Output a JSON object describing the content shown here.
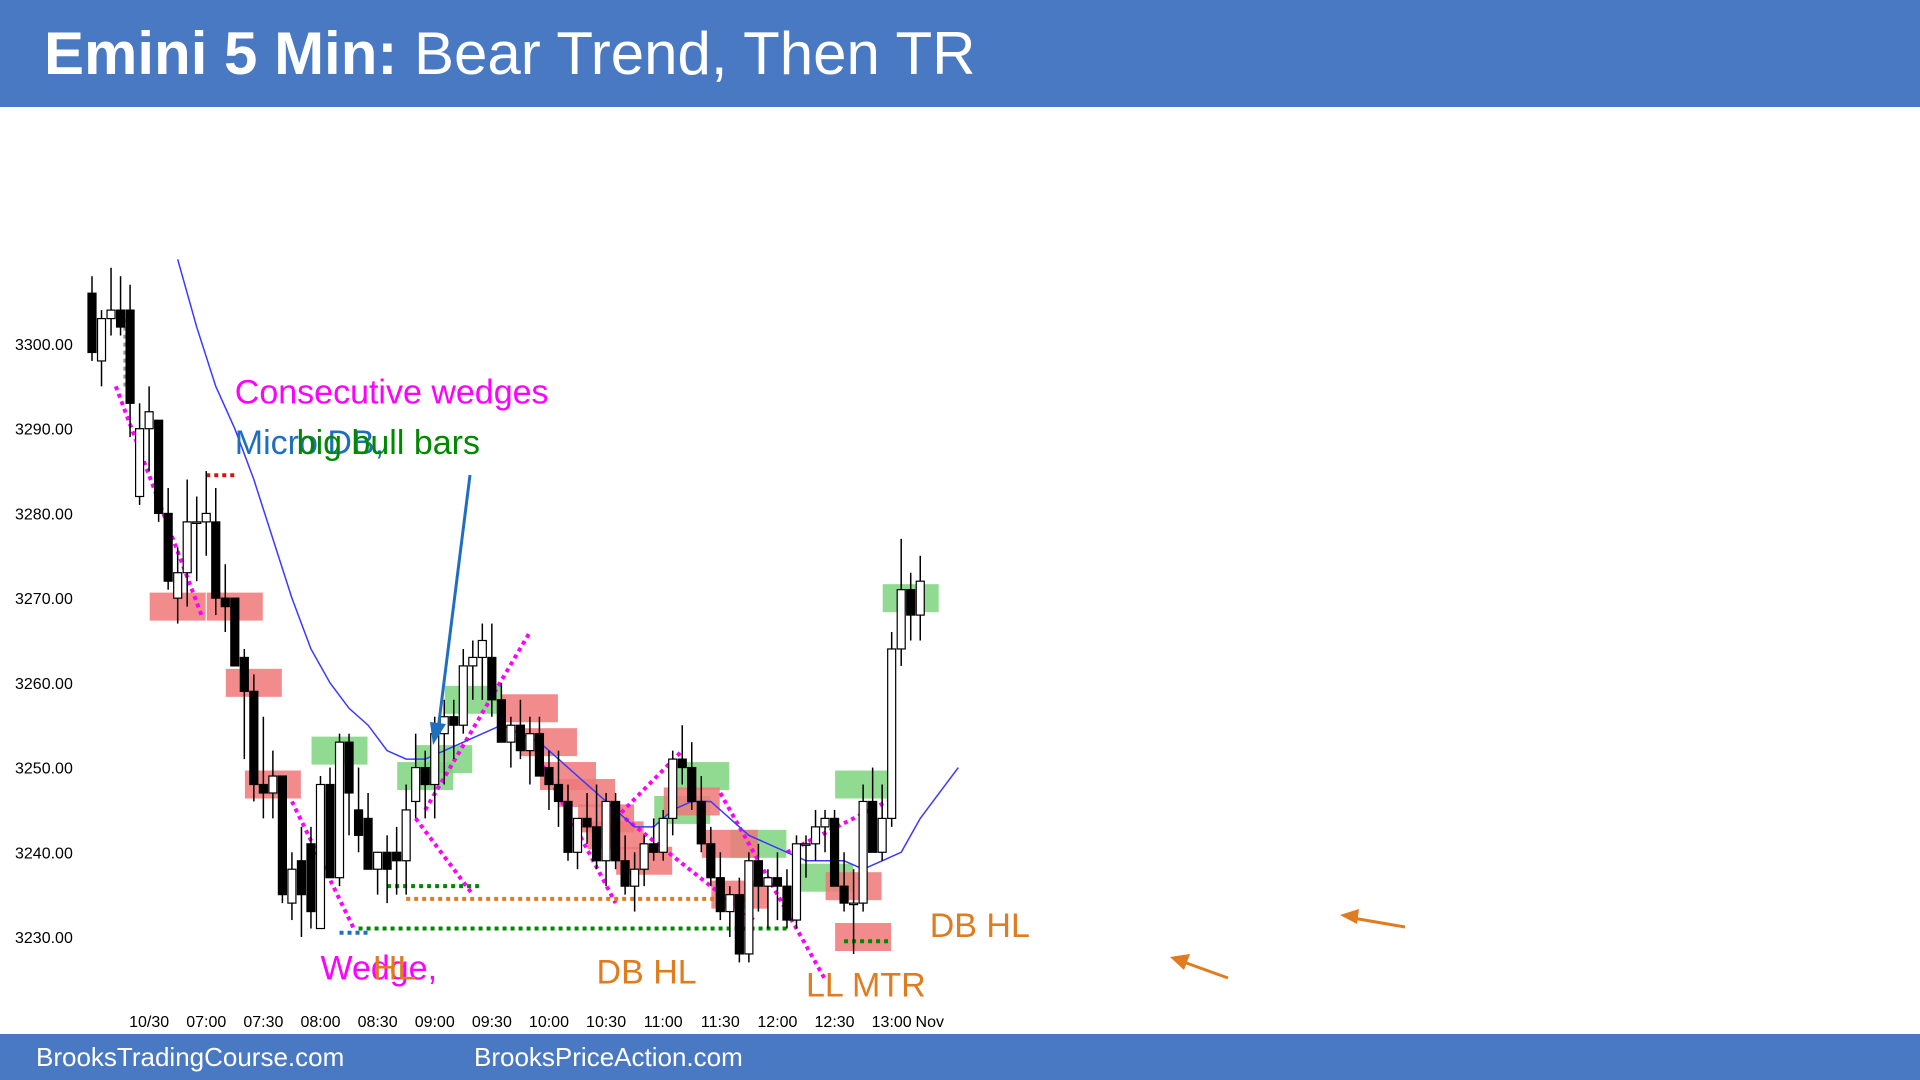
{
  "title": {
    "bold": "Emini 5 Min:",
    "rest": " Bear Trend, Then TR"
  },
  "footer": {
    "left": "BrooksTradingCourse.com",
    "right": "BrooksPriceAction.com"
  },
  "colors": {
    "header": "#4a79c3",
    "bull_zone": "#7ed37e",
    "bear_zone": "#f07878",
    "magenta": "#ff00ff",
    "orange": "#e07b1f",
    "blue": "#1f6fbf",
    "green": "#008800",
    "ema": "#3a3aff"
  },
  "chart_data": {
    "type": "candlestick",
    "title": "Emini 5 Min: Bear Trend, Then TR",
    "ylim": [
      3224,
      3307
    ],
    "y_ticks": [
      "3230.00",
      "3240.00",
      "3250.00",
      "3260.00",
      "3270.00",
      "3280.00",
      "3290.00",
      "3300.00"
    ],
    "x_ticks": [
      {
        "label": "10/30",
        "bar": 6
      },
      {
        "label": "07:00",
        "bar": 12
      },
      {
        "label": "07:30",
        "bar": 18
      },
      {
        "label": "08:00",
        "bar": 24
      },
      {
        "label": "08:30",
        "bar": 30
      },
      {
        "label": "09:00",
        "bar": 36
      },
      {
        "label": "09:30",
        "bar": 42
      },
      {
        "label": "10:00",
        "bar": 48
      },
      {
        "label": "10:30",
        "bar": 54
      },
      {
        "label": "11:00",
        "bar": 60
      },
      {
        "label": "11:30",
        "bar": 66
      },
      {
        "label": "12:00",
        "bar": 72
      },
      {
        "label": "12:30",
        "bar": 78
      },
      {
        "label": "13:00",
        "bar": 84
      },
      {
        "label": "Nov",
        "bar": 88
      }
    ],
    "bars": [
      [
        3306,
        3308,
        3298,
        3299
      ],
      [
        3298,
        3304,
        3295,
        3303
      ],
      [
        3303,
        3309,
        3301,
        3304
      ],
      [
        3304,
        3308,
        3301,
        3302
      ],
      [
        3304,
        3307,
        3289,
        3293
      ],
      [
        3282,
        3293,
        3281,
        3290
      ],
      [
        3290,
        3295,
        3285,
        3292
      ],
      [
        3291,
        3291,
        3279,
        3280
      ],
      [
        3280,
        3283,
        3271,
        3272
      ],
      [
        3270,
        3276,
        3267,
        3273
      ],
      [
        3273,
        3284,
        3269,
        3279
      ],
      [
        3279,
        3282,
        3272,
        3279
      ],
      [
        3279,
        3285,
        3275,
        3280
      ],
      [
        3279,
        3283,
        3268,
        3270
      ],
      [
        3270,
        3274,
        3266,
        3269
      ],
      [
        3270,
        3270,
        3262,
        3262
      ],
      [
        3263,
        3264,
        3251,
        3259
      ],
      [
        3259,
        3261,
        3246,
        3248
      ],
      [
        3248,
        3256,
        3244,
        3247
      ],
      [
        3247,
        3252,
        3244,
        3249
      ],
      [
        3249,
        3249,
        3234,
        3235
      ],
      [
        3234,
        3240,
        3232,
        3238
      ],
      [
        3239,
        3243,
        3230,
        3235
      ],
      [
        3241,
        3243,
        3231,
        3233
      ],
      [
        3231,
        3249,
        3231,
        3248
      ],
      [
        3248,
        3250,
        3237,
        3237
      ],
      [
        3237,
        3254,
        3236,
        3253
      ],
      [
        3253,
        3254,
        3242,
        3247
      ],
      [
        3245,
        3250,
        3240,
        3242
      ],
      [
        3244,
        3247,
        3238,
        3238
      ],
      [
        3238,
        3240,
        3235,
        3240
      ],
      [
        3240,
        3242,
        3234,
        3238
      ],
      [
        3240,
        3243,
        3235,
        3239
      ],
      [
        3239,
        3248,
        3235,
        3245
      ],
      [
        3246,
        3254,
        3244,
        3250
      ],
      [
        3250,
        3252,
        3244,
        3248
      ],
      [
        3248,
        3256,
        3244,
        3254
      ],
      [
        3254,
        3258,
        3248,
        3256
      ],
      [
        3256,
        3258,
        3251,
        3255
      ],
      [
        3255,
        3264,
        3254,
        3262
      ],
      [
        3262,
        3265,
        3258,
        3263
      ],
      [
        3263,
        3267,
        3258,
        3265
      ],
      [
        3263,
        3267,
        3256,
        3258
      ],
      [
        3258,
        3260,
        3253,
        3253
      ],
      [
        3253,
        3256,
        3250,
        3255
      ],
      [
        3255,
        3258,
        3251,
        3252
      ],
      [
        3252,
        3256,
        3248,
        3254
      ],
      [
        3254,
        3256,
        3249,
        3249
      ],
      [
        3250,
        3252,
        3245,
        3248
      ],
      [
        3248,
        3252,
        3243,
        3246
      ],
      [
        3246,
        3248,
        3239,
        3240
      ],
      [
        3240,
        3244,
        3238,
        3244
      ],
      [
        3244,
        3247,
        3241,
        3243
      ],
      [
        3243,
        3248,
        3238,
        3239
      ],
      [
        3239,
        3247,
        3236,
        3246
      ],
      [
        3246,
        3247,
        3238,
        3239
      ],
      [
        3239,
        3242,
        3235,
        3236
      ],
      [
        3236,
        3240,
        3233,
        3238
      ],
      [
        3238,
        3242,
        3236,
        3241
      ],
      [
        3241,
        3244,
        3239,
        3240
      ],
      [
        3240,
        3245,
        3239,
        3244
      ],
      [
        3244,
        3252,
        3242,
        3251
      ],
      [
        3251,
        3255,
        3248,
        3250
      ],
      [
        3250,
        3253,
        3245,
        3246
      ],
      [
        3246,
        3249,
        3240,
        3241
      ],
      [
        3241,
        3243,
        3236,
        3237
      ],
      [
        3237,
        3240,
        3232,
        3233
      ],
      [
        3233,
        3236,
        3230,
        3235
      ],
      [
        3235,
        3237,
        3227,
        3228
      ],
      [
        3228,
        3240,
        3227,
        3239
      ],
      [
        3239,
        3241,
        3233,
        3236
      ],
      [
        3236,
        3238,
        3231,
        3237
      ],
      [
        3237,
        3240,
        3232,
        3236
      ],
      [
        3236,
        3238,
        3231,
        3232
      ],
      [
        3232,
        3242,
        3231,
        3241
      ],
      [
        3241,
        3242,
        3237,
        3241
      ],
      [
        3241,
        3245,
        3239,
        3243
      ],
      [
        3243,
        3245,
        3240,
        3244
      ],
      [
        3244,
        3245,
        3236,
        3236
      ],
      [
        3236,
        3240,
        3233,
        3234
      ],
      [
        3234,
        3238,
        3228,
        3234
      ],
      [
        3234,
        3248,
        3233,
        3246
      ],
      [
        3246,
        3250,
        3241,
        3240
      ],
      [
        3240,
        3248,
        3239,
        3244
      ],
      [
        3244,
        3266,
        3243,
        3264
      ],
      [
        3264,
        3277,
        3262,
        3271
      ],
      [
        3271,
        3273,
        3265,
        3268
      ],
      [
        3268,
        3275,
        3265,
        3272
      ]
    ],
    "ema": [
      [
        9,
        3310
      ],
      [
        11,
        3302
      ],
      [
        13,
        3295
      ],
      [
        15,
        3290
      ],
      [
        17,
        3284
      ],
      [
        19,
        3277
      ],
      [
        21,
        3270
      ],
      [
        23,
        3264
      ],
      [
        25,
        3260
      ],
      [
        27,
        3257
      ],
      [
        29,
        3255
      ],
      [
        31,
        3252
      ],
      [
        33,
        3251
      ],
      [
        35,
        3251
      ],
      [
        37,
        3252
      ],
      [
        39,
        3253
      ],
      [
        41,
        3254
      ],
      [
        43,
        3255
      ],
      [
        45,
        3254
      ],
      [
        47,
        3253
      ],
      [
        49,
        3251
      ],
      [
        51,
        3249
      ],
      [
        53,
        3247
      ],
      [
        55,
        3245
      ],
      [
        57,
        3243
      ],
      [
        59,
        3243
      ],
      [
        61,
        3245
      ],
      [
        63,
        3246
      ],
      [
        65,
        3246
      ],
      [
        67,
        3244
      ],
      [
        69,
        3242
      ],
      [
        71,
        3241
      ],
      [
        73,
        3240
      ],
      [
        75,
        3239
      ],
      [
        77,
        3239
      ],
      [
        79,
        3239
      ],
      [
        81,
        3238
      ],
      [
        83,
        3239
      ],
      [
        85,
        3240
      ],
      [
        87,
        3244
      ],
      [
        89,
        3247
      ],
      [
        91,
        3250
      ]
    ],
    "zones_green": [
      [
        26,
        3252
      ],
      [
        35,
        3249
      ],
      [
        37,
        3251
      ],
      [
        40,
        3258
      ],
      [
        62,
        3245
      ],
      [
        64,
        3249
      ],
      [
        70,
        3241
      ],
      [
        77,
        3237
      ],
      [
        81,
        3248
      ],
      [
        86,
        3270
      ]
    ],
    "zones_red": [
      [
        9,
        3269
      ],
      [
        15,
        3269
      ],
      [
        17,
        3260
      ],
      [
        19,
        3248
      ],
      [
        46,
        3257
      ],
      [
        48,
        3253
      ],
      [
        50,
        3249
      ],
      [
        52,
        3247
      ],
      [
        54,
        3244
      ],
      [
        55,
        3242
      ],
      [
        58,
        3239
      ],
      [
        63,
        3246
      ],
      [
        67,
        3241
      ],
      [
        68,
        3235
      ],
      [
        80,
        3236
      ],
      [
        81,
        3230
      ]
    ],
    "annotations": [
      {
        "text": "Consecutive wedges",
        "color": "magenta",
        "bar": 15,
        "y": 3293,
        "size": 34
      },
      {
        "text": "Micro DB, ",
        "color": "blue",
        "bar": 15,
        "y": 3287,
        "size": 34
      },
      {
        "text": "big bull bars",
        "color": "green",
        "bar": 21.5,
        "y": 3287,
        "size": 34
      },
      {
        "text": "Wedge, ",
        "color": "magenta",
        "bar": 24,
        "y": 3225,
        "size": 34
      },
      {
        "text": "HL",
        "color": "orange",
        "bar": 29.5,
        "y": 3225,
        "size": 34
      },
      {
        "text": "DB HL",
        "color": "orange",
        "bar": 53,
        "y": 3224.5,
        "size": 34
      },
      {
        "text": "LL MTR",
        "color": "orange",
        "bar": 75,
        "y": 3223,
        "size": 34
      },
      {
        "text": "DB HL",
        "color": "orange",
        "bar": 88,
        "y": 3230,
        "size": 34
      }
    ],
    "xlabel": "",
    "ylabel": "",
    "grid": false
  }
}
